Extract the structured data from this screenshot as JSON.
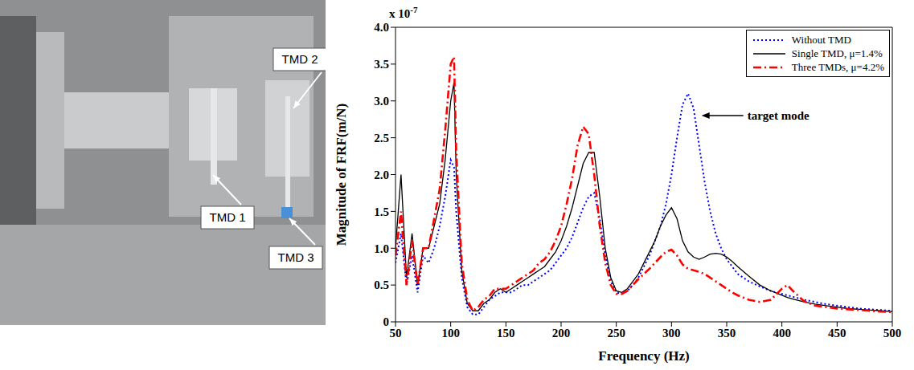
{
  "photo": {
    "labels": [
      "TMD 1",
      "TMD 2",
      "TMD 3"
    ]
  },
  "chart_data": {
    "type": "line",
    "xlabel": "Frequency (Hz)",
    "ylabel": "Magnitude of FRF(m/N)",
    "y_multiplier": {
      "base": "x 10",
      "exponent": "-7"
    },
    "x": [
      50,
      55,
      60,
      65,
      70,
      75,
      80,
      85,
      90,
      95,
      100,
      103,
      105,
      110,
      115,
      120,
      125,
      130,
      135,
      140,
      145,
      150,
      155,
      160,
      165,
      170,
      175,
      180,
      185,
      190,
      195,
      200,
      205,
      210,
      215,
      220,
      225,
      230,
      235,
      240,
      245,
      250,
      255,
      260,
      265,
      270,
      275,
      280,
      285,
      290,
      295,
      300,
      305,
      310,
      315,
      320,
      325,
      330,
      335,
      340,
      345,
      350,
      355,
      360,
      370,
      380,
      390,
      400,
      405,
      410,
      420,
      430,
      440,
      450,
      460,
      470,
      480,
      490,
      500
    ],
    "series": [
      {
        "name": "Without TMD",
        "color": "#0000ff",
        "line_style": "dotted",
        "values": [
          0.8,
          1.2,
          0.5,
          0.9,
          0.4,
          0.9,
          0.8,
          1.0,
          1.3,
          1.7,
          2.2,
          2.1,
          1.5,
          0.6,
          0.2,
          0.1,
          0.1,
          0.2,
          0.3,
          0.35,
          0.4,
          0.4,
          0.4,
          0.45,
          0.5,
          0.5,
          0.55,
          0.6,
          0.65,
          0.7,
          0.8,
          0.9,
          1.0,
          1.15,
          1.35,
          1.55,
          1.7,
          1.75,
          1.4,
          0.9,
          0.55,
          0.4,
          0.38,
          0.42,
          0.5,
          0.6,
          0.75,
          0.9,
          1.1,
          1.3,
          1.6,
          2.0,
          2.5,
          2.95,
          3.1,
          2.9,
          2.4,
          1.9,
          1.5,
          1.2,
          1.0,
          0.85,
          0.75,
          0.65,
          0.55,
          0.48,
          0.42,
          0.38,
          0.36,
          0.34,
          0.3,
          0.27,
          0.24,
          0.22,
          0.2,
          0.18,
          0.17,
          0.16,
          0.15
        ]
      },
      {
        "name": "Single TMD, μ=1.4%",
        "color": "#000000",
        "line_style": "solid",
        "values": [
          1.0,
          2.0,
          0.6,
          1.2,
          0.5,
          1.0,
          1.0,
          1.3,
          1.6,
          2.2,
          3.0,
          3.25,
          2.0,
          0.7,
          0.25,
          0.15,
          0.15,
          0.25,
          0.3,
          0.4,
          0.45,
          0.4,
          0.45,
          0.5,
          0.55,
          0.6,
          0.65,
          0.7,
          0.75,
          0.85,
          0.95,
          1.1,
          1.3,
          1.55,
          1.85,
          2.15,
          2.3,
          2.3,
          1.7,
          1.0,
          0.6,
          0.42,
          0.4,
          0.45,
          0.55,
          0.65,
          0.8,
          0.95,
          1.1,
          1.3,
          1.45,
          1.55,
          1.4,
          1.1,
          0.95,
          0.88,
          0.85,
          0.88,
          0.92,
          0.93,
          0.92,
          0.88,
          0.82,
          0.75,
          0.62,
          0.5,
          0.42,
          0.36,
          0.33,
          0.31,
          0.27,
          0.24,
          0.22,
          0.2,
          0.18,
          0.17,
          0.16,
          0.15,
          0.14
        ]
      },
      {
        "name": "Three TMDs, μ=4.2%",
        "color": "#ff0000",
        "line_style": "dashdot",
        "values": [
          0.9,
          1.5,
          0.5,
          1.1,
          0.5,
          1.0,
          1.0,
          1.4,
          1.8,
          2.6,
          3.5,
          3.6,
          2.3,
          0.8,
          0.3,
          0.15,
          0.2,
          0.3,
          0.35,
          0.45,
          0.45,
          0.45,
          0.5,
          0.55,
          0.6,
          0.65,
          0.7,
          0.8,
          0.85,
          0.95,
          1.1,
          1.3,
          1.6,
          1.95,
          2.4,
          2.65,
          2.55,
          2.0,
          1.3,
          0.8,
          0.5,
          0.38,
          0.38,
          0.42,
          0.5,
          0.58,
          0.65,
          0.72,
          0.8,
          0.88,
          0.95,
          0.98,
          0.9,
          0.78,
          0.72,
          0.7,
          0.68,
          0.65,
          0.6,
          0.55,
          0.5,
          0.45,
          0.4,
          0.36,
          0.3,
          0.27,
          0.3,
          0.45,
          0.5,
          0.42,
          0.28,
          0.22,
          0.2,
          0.18,
          0.17,
          0.16,
          0.15,
          0.14,
          0.13
        ]
      }
    ],
    "xlim": [
      50,
      500
    ],
    "xticks": [
      50,
      100,
      150,
      200,
      250,
      300,
      350,
      400,
      450,
      500
    ],
    "ylim": [
      0,
      4
    ],
    "yticks": [
      0,
      0.5,
      {
        "value": 1,
        "label": "1.0"
      },
      1.5,
      {
        "value": 2,
        "label": "2.0"
      },
      2.5,
      {
        "value": 3,
        "label": "3.0"
      },
      3.5,
      {
        "value": 4,
        "label": "4.0"
      }
    ],
    "grid": false,
    "legend": "upper right",
    "annotations": [
      {
        "text": "target mode",
        "x": 325,
        "y": 2.8
      }
    ]
  }
}
